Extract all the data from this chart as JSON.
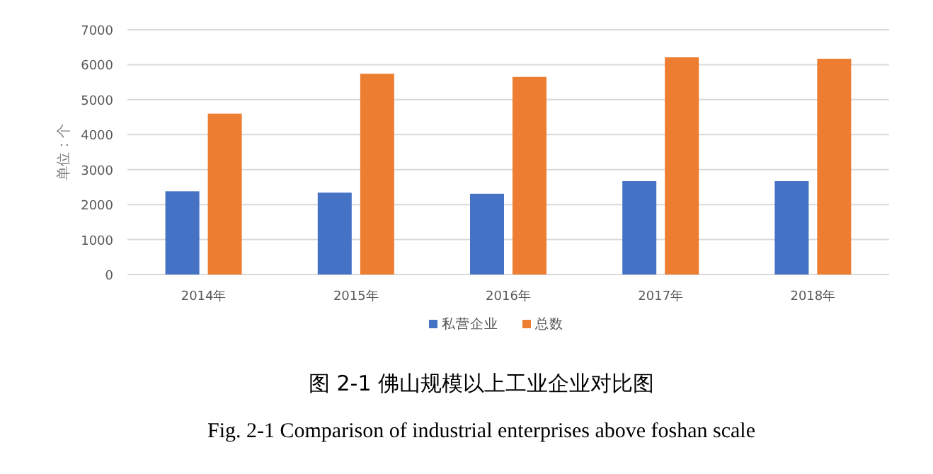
{
  "chart_data": {
    "type": "bar",
    "title": "图 2-1 佛山规模以上工业企业对比图",
    "ylabel": "单位：个",
    "categories": [
      "2014年",
      "2015年",
      "2016年",
      "2017年",
      "2018年"
    ],
    "series": [
      {
        "name": "私营企业",
        "color": "#4472c4",
        "values": [
          2380,
          2340,
          2310,
          2670,
          2670
        ]
      },
      {
        "name": "总数",
        "color": "#ed7d31",
        "values": [
          4600,
          5740,
          5650,
          6210,
          6170
        ]
      }
    ],
    "ylim": [
      0,
      7000
    ],
    "yticks": [
      0,
      1000,
      2000,
      3000,
      4000,
      5000,
      6000,
      7000
    ],
    "grid": "y",
    "legend": "bottom",
    "annotations": [
      "Fig. 2-1 Comparison of industrial enterprises above foshan scale"
    ]
  }
}
